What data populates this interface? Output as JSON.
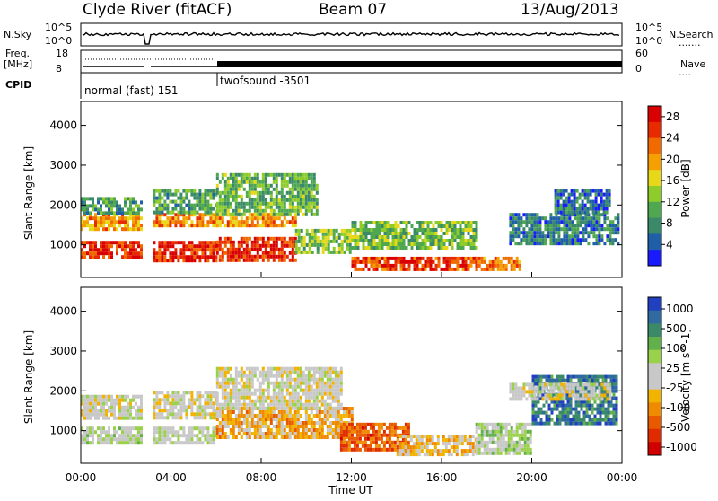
{
  "header": {
    "station": "Clyde River (fitACF)",
    "beam": "Beam 07",
    "date": "13/Aug/2013"
  },
  "params": {
    "nsky_label": "N.Sky",
    "nsky_ticks": [
      "10^5",
      "10^0"
    ],
    "nsearch_label": "N.Search",
    "freq_label": "Freq.",
    "freq_unit": "[MHz]",
    "freq_ticks": [
      "18",
      "8"
    ],
    "nave_label": "Nave",
    "nave_ticks": [
      "60",
      "0"
    ],
    "nsky_ticks_right": [
      "10^5",
      "10^0"
    ],
    "cpid_label": "CPID",
    "cpid_segments": [
      {
        "label": "normal (fast) 151",
        "start_hour": 0.0,
        "end_hour": 6.0
      },
      {
        "label": "twofsound -3501",
        "start_hour": 6.0,
        "end_hour": 24.0
      }
    ]
  },
  "axes": {
    "ylabel": "Slant Range [km]",
    "xlabel": "Time UT",
    "x_ticks": [
      "00:00",
      "04:00",
      "08:00",
      "12:00",
      "16:00",
      "20:00",
      "00:00"
    ],
    "y_ticks": [
      "1000",
      "2000",
      "3000",
      "4000"
    ]
  },
  "chart_data": [
    {
      "type": "heatmap",
      "title": "",
      "xlabel": "Time UT",
      "ylabel": "Slant Range [km]",
      "xlim": [
        0,
        24
      ],
      "ylim": [
        180,
        4600
      ],
      "colorbar": {
        "label": "Power [dB]",
        "ticks": [
          "4",
          "8",
          "12",
          "16",
          "20",
          "24",
          "28"
        ],
        "range": [
          0,
          30
        ],
        "colors": [
          "#1a1aff",
          "#1f5fa8",
          "#3a8a6a",
          "#4fa84f",
          "#8dcc2a",
          "#e8d81a",
          "#f5a000",
          "#f06a00",
          "#e82a00",
          "#d80000"
        ]
      },
      "regions": [
        {
          "t": [
            0.0,
            2.7
          ],
          "r": [
            700,
            1100
          ],
          "value": 26
        },
        {
          "t": [
            0.0,
            2.7
          ],
          "r": [
            1400,
            1800
          ],
          "value": 20
        },
        {
          "t": [
            0.0,
            2.7
          ],
          "r": [
            1800,
            2200
          ],
          "value": 9
        },
        {
          "t": [
            3.2,
            6.0
          ],
          "r": [
            600,
            1100
          ],
          "value": 27
        },
        {
          "t": [
            3.2,
            6.0
          ],
          "r": [
            1500,
            1800
          ],
          "value": 21
        },
        {
          "t": [
            3.2,
            6.0
          ],
          "r": [
            1800,
            2400
          ],
          "value": 10
        },
        {
          "t": [
            6.0,
            9.5
          ],
          "r": [
            600,
            1200
          ],
          "value": 26
        },
        {
          "t": [
            6.0,
            9.5
          ],
          "r": [
            1500,
            1800
          ],
          "value": 20
        },
        {
          "t": [
            6.0,
            10.5
          ],
          "r": [
            1800,
            2800
          ],
          "value": 11
        },
        {
          "t": [
            9.5,
            12.0
          ],
          "r": [
            800,
            1400
          ],
          "value": 13
        },
        {
          "t": [
            12.0,
            17.5
          ],
          "r": [
            400,
            700
          ],
          "value": 25
        },
        {
          "t": [
            12.0,
            17.5
          ],
          "r": [
            900,
            1600
          ],
          "value": 12
        },
        {
          "t": [
            17.5,
            19.5
          ],
          "r": [
            400,
            700
          ],
          "value": 22
        },
        {
          "t": [
            19.0,
            23.8
          ],
          "r": [
            1000,
            1800
          ],
          "value": 7
        },
        {
          "t": [
            21.0,
            23.5
          ],
          "r": [
            1800,
            2400
          ],
          "value": 6
        }
      ]
    },
    {
      "type": "heatmap",
      "title": "",
      "xlabel": "Time UT",
      "ylabel": "Slant Range [km]",
      "xlim": [
        0,
        24
      ],
      "ylim": [
        180,
        4600
      ],
      "colorbar": {
        "label": "Velocity [m s^-1]",
        "ticks": [
          "1000",
          "500",
          "100",
          "25",
          "-25",
          "-100",
          "-500",
          "-1000"
        ],
        "range": [
          -1000,
          1000
        ],
        "colors": [
          "#2040c0",
          "#2f6aa0",
          "#3a8a6a",
          "#62b04a",
          "#9ad14a",
          "#c8c8c8",
          "#c8c8c8",
          "#f2b200",
          "#f08a00",
          "#e85a00",
          "#e02a00",
          "#d00000"
        ]
      },
      "regions": [
        {
          "t": [
            0.0,
            2.7
          ],
          "r": [
            1300,
            1900
          ],
          "value": 0
        },
        {
          "t": [
            0.0,
            2.7
          ],
          "r": [
            700,
            1100
          ],
          "value": 120
        },
        {
          "t": [
            3.2,
            6.0
          ],
          "r": [
            1300,
            2000
          ],
          "value": 0
        },
        {
          "t": [
            3.2,
            6.0
          ],
          "r": [
            700,
            1100
          ],
          "value": 80
        },
        {
          "t": [
            6.0,
            12.0
          ],
          "r": [
            800,
            1600
          ],
          "value": -300
        },
        {
          "t": [
            6.0,
            11.5
          ],
          "r": [
            1600,
            2600
          ],
          "value": 0
        },
        {
          "t": [
            11.5,
            14.5
          ],
          "r": [
            500,
            1200
          ],
          "value": -600
        },
        {
          "t": [
            14.0,
            17.5
          ],
          "r": [
            400,
            900
          ],
          "value": -200
        },
        {
          "t": [
            17.5,
            20.0
          ],
          "r": [
            400,
            1200
          ],
          "value": 200
        },
        {
          "t": [
            20.0,
            23.8
          ],
          "r": [
            1200,
            2400
          ],
          "value": 700
        },
        {
          "t": [
            19.0,
            23.5
          ],
          "r": [
            1800,
            2200
          ],
          "value": 0
        }
      ]
    }
  ]
}
